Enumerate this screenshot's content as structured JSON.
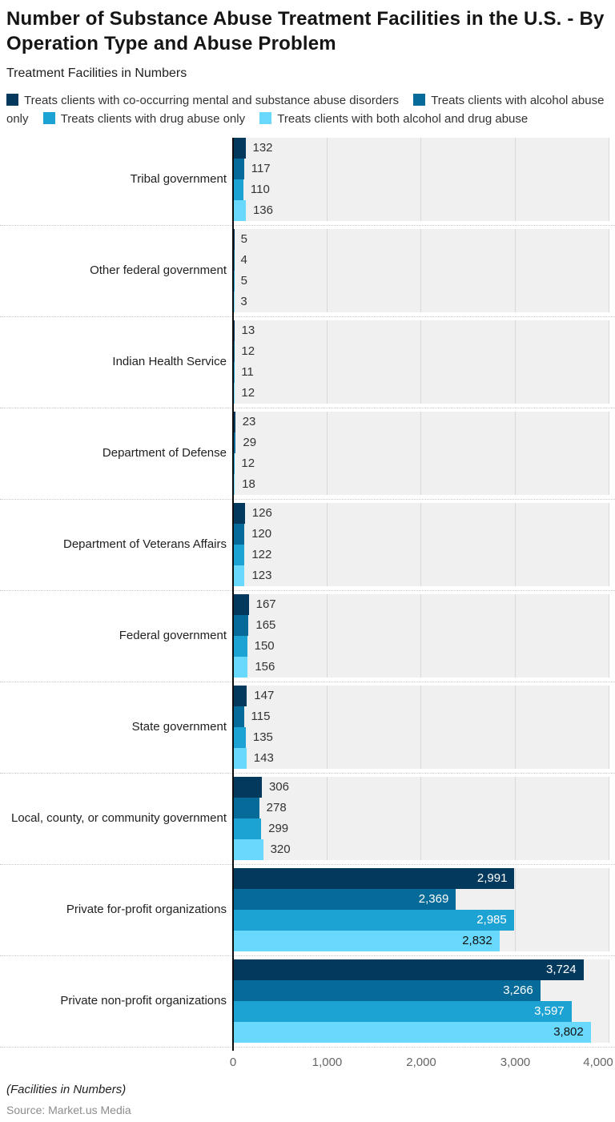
{
  "header": {
    "title": "Number of Substance Abuse Treatment Facilities in the U.S. - By Operation Type and Abuse Problem",
    "subtitle": "Treatment Facilities in Numbers"
  },
  "chart_data": {
    "type": "bar",
    "orientation": "horizontal",
    "title": "Number of Substance Abuse Treatment Facilities in the U.S. - By Operation Type and Abuse Problem",
    "ylabel": "Treatment Facilities in Numbers",
    "xlim": [
      0,
      4000
    ],
    "x_ticks": [
      "0",
      "1,000",
      "2,000",
      "3,000",
      "4,000"
    ],
    "grid": true,
    "legend_position": "top",
    "plot_background": "#f0f0f0",
    "gridline_color": "#d9d9d9",
    "categories": [
      "Tribal government",
      "Other federal government",
      "Indian Health Service",
      "Department of Defense",
      "Department of Veterans Affairs",
      "Federal government",
      "State government",
      "Local, county, or community government",
      "Private for-profit organizations",
      "Private non-profit organizations"
    ],
    "series": [
      {
        "name": "Treats clients with co-occurring mental and substance abuse disorders",
        "color": "#04395e",
        "inside_label_color": "#ffffff",
        "values": [
          132,
          5,
          13,
          23,
          126,
          167,
          147,
          306,
          2991,
          3724
        ]
      },
      {
        "name": "Treats clients with alcohol abuse only",
        "color": "#076b99",
        "inside_label_color": "#ffffff",
        "values": [
          117,
          4,
          12,
          29,
          120,
          165,
          115,
          278,
          2369,
          3266
        ]
      },
      {
        "name": "Treats clients with drug abuse only",
        "color": "#1ca3d3",
        "inside_label_color": "#ffffff",
        "values": [
          110,
          5,
          11,
          12,
          122,
          150,
          135,
          299,
          2985,
          3597
        ]
      },
      {
        "name": "Treats clients with both alcohol and drug abuse",
        "color": "#69d8fd",
        "inside_label_color": "#111111",
        "values": [
          136,
          3,
          12,
          18,
          123,
          156,
          143,
          320,
          2832,
          3802
        ]
      }
    ]
  },
  "footer": {
    "axis_note": "(Facilities in Numbers)",
    "source": "Source: Market.us Media"
  }
}
